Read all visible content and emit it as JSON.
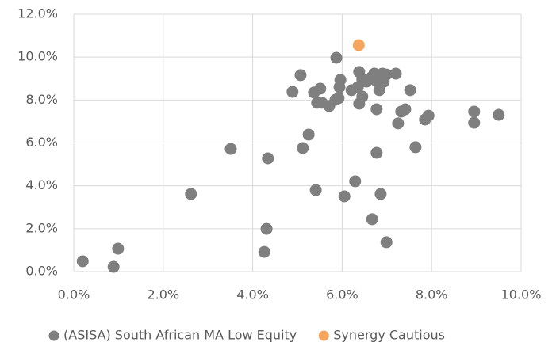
{
  "chart_data": {
    "type": "scatter",
    "series": [
      {
        "name": "(ASISA) South African MA Low Equity",
        "color": "#7f7f7f",
        "x": [
          0.2,
          0.89,
          0.99,
          2.62,
          3.51,
          4.26,
          4.31,
          4.34,
          4.89,
          5.07,
          5.12,
          5.25,
          5.37,
          5.41,
          5.44,
          5.51,
          5.55,
          5.71,
          5.85,
          5.87,
          5.92,
          5.94,
          5.96,
          6.05,
          6.21,
          6.29,
          6.35,
          6.38,
          6.38,
          6.45,
          6.45,
          6.54,
          6.65,
          6.67,
          6.72,
          6.76,
          6.77,
          6.77,
          6.83,
          6.83,
          6.86,
          6.9,
          6.93,
          6.99,
          6.99,
          7.2,
          7.25,
          7.32,
          7.41,
          7.52,
          7.64,
          7.85,
          7.93,
          8.95,
          8.95,
          9.5
        ],
        "y": [
          0.48,
          0.22,
          1.07,
          3.62,
          5.72,
          0.92,
          1.99,
          5.28,
          8.38,
          9.16,
          5.76,
          6.39,
          8.35,
          3.8,
          7.87,
          8.53,
          7.87,
          7.72,
          8.01,
          9.97,
          8.09,
          8.6,
          8.94,
          3.51,
          8.46,
          4.21,
          8.6,
          7.83,
          9.31,
          8.97,
          8.16,
          8.86,
          9.05,
          2.44,
          9.23,
          8.9,
          7.57,
          5.54,
          9.05,
          8.46,
          3.62,
          9.23,
          8.86,
          1.37,
          9.19,
          9.23,
          6.91,
          7.46,
          7.57,
          8.46,
          5.8,
          7.09,
          7.27,
          7.46,
          6.94,
          7.31
        ]
      },
      {
        "name": "Synergy Cautious",
        "color": "#f6a55c",
        "x": [
          6.37
        ],
        "y": [
          10.56
        ]
      }
    ],
    "xlim": [
      0,
      10
    ],
    "ylim": [
      0,
      12
    ],
    "xticks": [
      {
        "value": 0,
        "label": "0.0%"
      },
      {
        "value": 2,
        "label": "2.0%"
      },
      {
        "value": 4,
        "label": "4.0%"
      },
      {
        "value": 6,
        "label": "6.0%"
      },
      {
        "value": 8,
        "label": "8.0%"
      },
      {
        "value": 10,
        "label": "10.0%"
      }
    ],
    "yticks": [
      {
        "value": 0,
        "label": "0.0%"
      },
      {
        "value": 2,
        "label": "2.0%"
      },
      {
        "value": 4,
        "label": "4.0%"
      },
      {
        "value": 6,
        "label": "6.0%"
      },
      {
        "value": 8,
        "label": "8.0%"
      },
      {
        "value": 10,
        "label": "10.0%"
      },
      {
        "value": 12,
        "label": "12.0%"
      }
    ],
    "grid": true,
    "legend": "bottom"
  }
}
